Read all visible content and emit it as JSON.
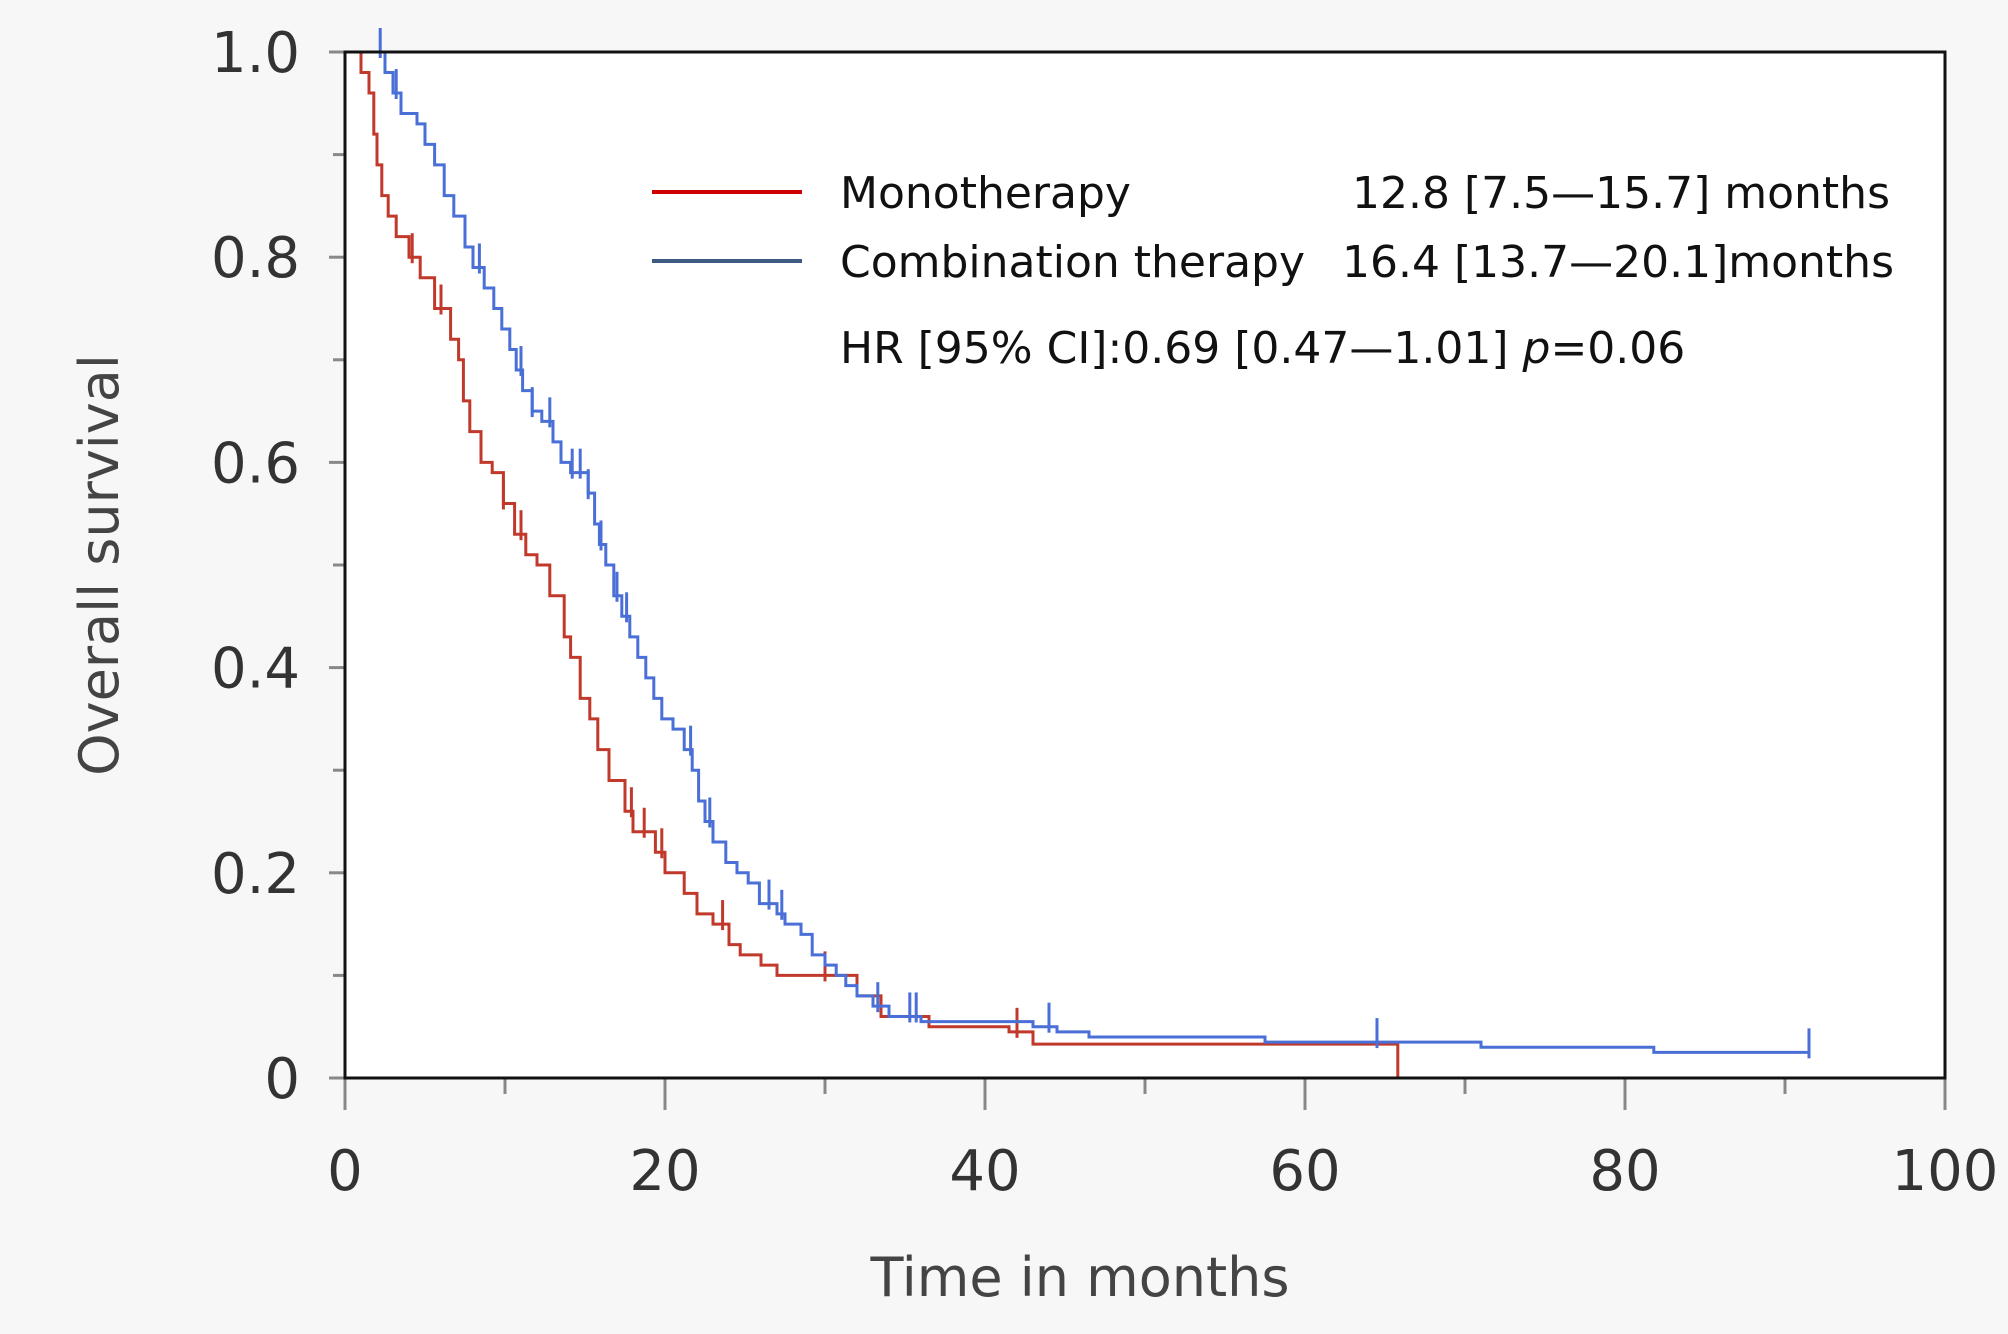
{
  "chart_data": {
    "type": "line",
    "subtype": "kaplan-meier",
    "xlabel": "Time in months",
    "ylabel": "Overall survival",
    "xlim": [
      0,
      100
    ],
    "ylim": [
      0,
      1
    ],
    "x_ticks": [
      "0",
      "20",
      "40",
      "60",
      "80",
      "100"
    ],
    "y_ticks": [
      "0",
      "0.2",
      "0.4",
      "0.6",
      "0.8",
      "1.0"
    ],
    "legend_position": "top-right",
    "series": [
      {
        "name": "Monotherapy",
        "legend_label": "Monotherapy",
        "legend_value": "12.8 [7.5—15.7] months",
        "color": "#c0392b",
        "legend_color": "#cc0000",
        "steps": [
          [
            0,
            1.0
          ],
          [
            1,
            0.98
          ],
          [
            1.5,
            0.96
          ],
          [
            1.8,
            0.92
          ],
          [
            2.0,
            0.89
          ],
          [
            2.3,
            0.86
          ],
          [
            2.7,
            0.84
          ],
          [
            3.2,
            0.82
          ],
          [
            4.0,
            0.8
          ],
          [
            4.7,
            0.78
          ],
          [
            5.6,
            0.75
          ],
          [
            6.6,
            0.72
          ],
          [
            7.1,
            0.7
          ],
          [
            7.4,
            0.66
          ],
          [
            7.8,
            0.63
          ],
          [
            8.5,
            0.6
          ],
          [
            9.2,
            0.59
          ],
          [
            9.9,
            0.56
          ],
          [
            10.6,
            0.53
          ],
          [
            11.3,
            0.51
          ],
          [
            12.0,
            0.5
          ],
          [
            12.8,
            0.47
          ],
          [
            13.7,
            0.43
          ],
          [
            14.1,
            0.41
          ],
          [
            14.7,
            0.37
          ],
          [
            15.3,
            0.35
          ],
          [
            15.8,
            0.32
          ],
          [
            16.5,
            0.29
          ],
          [
            17.5,
            0.26
          ],
          [
            18.0,
            0.24
          ],
          [
            19.4,
            0.22
          ],
          [
            20.0,
            0.2
          ],
          [
            21.2,
            0.18
          ],
          [
            22.0,
            0.16
          ],
          [
            23.0,
            0.15
          ],
          [
            24.0,
            0.13
          ],
          [
            24.7,
            0.12
          ],
          [
            26.0,
            0.11
          ],
          [
            27.0,
            0.1
          ],
          [
            32.0,
            0.08
          ],
          [
            33.5,
            0.06
          ],
          [
            36.5,
            0.05
          ],
          [
            41.5,
            0.045
          ],
          [
            43.0,
            0.033
          ],
          [
            65.8,
            0.0
          ]
        ],
        "censor_x": [
          4.2,
          6.0,
          9.9,
          11.0,
          17.9,
          18.7,
          19.8,
          23.6,
          30.0,
          42.0
        ]
      },
      {
        "name": "Combination therapy",
        "legend_label": "Combination therapy",
        "legend_value": "16.4 [13.7—20.1]months",
        "color": "#4a6fd6",
        "legend_color": "#3d5a80",
        "steps": [
          [
            0,
            1.0
          ],
          [
            2.5,
            0.98
          ],
          [
            3.0,
            0.96
          ],
          [
            3.5,
            0.94
          ],
          [
            4.5,
            0.93
          ],
          [
            5.0,
            0.91
          ],
          [
            5.6,
            0.89
          ],
          [
            6.2,
            0.86
          ],
          [
            6.8,
            0.84
          ],
          [
            7.5,
            0.81
          ],
          [
            8.0,
            0.79
          ],
          [
            8.7,
            0.77
          ],
          [
            9.3,
            0.75
          ],
          [
            9.8,
            0.73
          ],
          [
            10.3,
            0.71
          ],
          [
            10.7,
            0.69
          ],
          [
            11.1,
            0.67
          ],
          [
            11.7,
            0.65
          ],
          [
            12.3,
            0.64
          ],
          [
            13.0,
            0.62
          ],
          [
            13.5,
            0.6
          ],
          [
            14.1,
            0.59
          ],
          [
            15.2,
            0.57
          ],
          [
            15.6,
            0.54
          ],
          [
            15.9,
            0.52
          ],
          [
            16.3,
            0.5
          ],
          [
            16.8,
            0.47
          ],
          [
            17.3,
            0.45
          ],
          [
            17.8,
            0.43
          ],
          [
            18.3,
            0.41
          ],
          [
            18.8,
            0.39
          ],
          [
            19.3,
            0.37
          ],
          [
            19.8,
            0.35
          ],
          [
            20.5,
            0.34
          ],
          [
            21.2,
            0.32
          ],
          [
            21.7,
            0.3
          ],
          [
            22.1,
            0.27
          ],
          [
            22.5,
            0.25
          ],
          [
            23.0,
            0.23
          ],
          [
            23.8,
            0.21
          ],
          [
            24.5,
            0.2
          ],
          [
            25.2,
            0.19
          ],
          [
            25.9,
            0.17
          ],
          [
            27.0,
            0.16
          ],
          [
            27.5,
            0.15
          ],
          [
            28.5,
            0.14
          ],
          [
            29.2,
            0.12
          ],
          [
            30.0,
            0.11
          ],
          [
            30.7,
            0.1
          ],
          [
            31.3,
            0.09
          ],
          [
            32.0,
            0.08
          ],
          [
            33.0,
            0.07
          ],
          [
            34.0,
            0.06
          ],
          [
            36.0,
            0.055
          ],
          [
            43.0,
            0.05
          ],
          [
            44.5,
            0.045
          ],
          [
            46.5,
            0.04
          ],
          [
            57.5,
            0.035
          ],
          [
            71.0,
            0.03
          ],
          [
            81.8,
            0.025
          ],
          [
            91.5,
            0.025
          ]
        ],
        "censor_x": [
          2.2,
          3.2,
          8.4,
          11.0,
          11.7,
          12.8,
          14.2,
          14.7,
          15.2,
          16.0,
          17.0,
          17.6,
          21.6,
          22.8,
          26.5,
          27.3,
          33.3,
          35.3,
          35.7,
          44.0,
          64.5,
          91.5
        ]
      }
    ],
    "annotation": {
      "prefix": "HR [95% CI]:0.69 [0.47—1.01] ",
      "p_symbol": "p",
      "p_value": "=0.06"
    }
  }
}
